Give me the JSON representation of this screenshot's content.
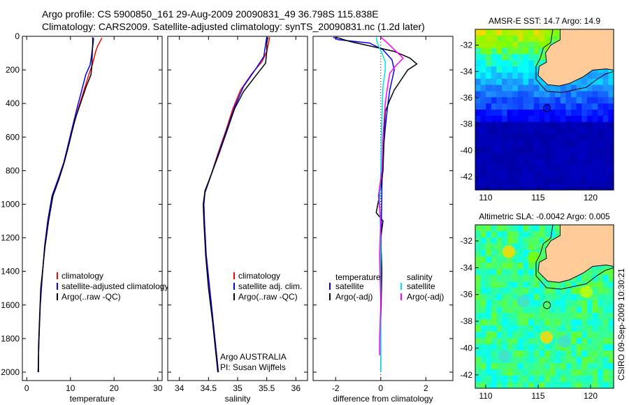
{
  "header": {
    "line1": "Argo profile: CS 5900850_161 29-Aug-2009 20090831_49 36.798S 115.838E",
    "line2": "Climatology: CARS2009. Satellite-adjusted climatology: synTS_20090831.nc (1.2d later)"
  },
  "stamp": "CSIRO 09-Sep-2009 10:30:21",
  "colors": {
    "climatology": "#ff0000",
    "satellite": "#0000ff",
    "argo": "#000000",
    "sal_satellite": "#00e5e5",
    "sal_argo": "#ff00ff",
    "land": "#ffcc99"
  },
  "depth_axis": {
    "ylim": [
      2050,
      0
    ],
    "ticks": [
      0,
      200,
      400,
      600,
      800,
      1000,
      1200,
      1400,
      1600,
      1800,
      2000
    ]
  },
  "chart_data": [
    {
      "type": "line",
      "id": "temperature",
      "xlabel": "temperature",
      "xlim": [
        -1,
        31
      ],
      "xticks": [
        0,
        10,
        20,
        30
      ],
      "ylim": [
        2050,
        0
      ],
      "legend": {
        "placement": "lower-right",
        "entries": [
          "climatology",
          "satellite-adjusted climatology",
          "Argo(..raw -QC)"
        ]
      },
      "series": [
        {
          "name": "climatology",
          "color": "#ff0000",
          "points": [
            [
              17.2,
              10
            ],
            [
              16.8,
              30
            ],
            [
              16.2,
              60
            ],
            [
              15.8,
              90
            ],
            [
              15.4,
              130
            ],
            [
              15.0,
              170
            ],
            [
              14.2,
              230
            ],
            [
              13.0,
              330
            ],
            [
              11.8,
              430
            ],
            [
              10.0,
              600
            ],
            [
              8.5,
              750
            ],
            [
              7.2,
              850
            ],
            [
              5.8,
              950
            ],
            [
              4.8,
              1100
            ],
            [
              4.1,
              1250
            ],
            [
              3.5,
              1450
            ],
            [
              3.1,
              1600
            ],
            [
              2.8,
              1800
            ],
            [
              2.6,
              2000
            ]
          ]
        },
        {
          "name": "satellite-adjusted climatology",
          "color": "#0000ff",
          "points": [
            [
              15.3,
              10
            ],
            [
              15.2,
              40
            ],
            [
              15.0,
              80
            ],
            [
              14.8,
              120
            ],
            [
              14.5,
              170
            ],
            [
              13.5,
              230
            ],
            [
              12.5,
              330
            ],
            [
              11.5,
              430
            ],
            [
              9.9,
              600
            ],
            [
              8.5,
              750
            ],
            [
              7.2,
              850
            ],
            [
              5.8,
              950
            ],
            [
              4.8,
              1100
            ],
            [
              4.1,
              1250
            ],
            [
              3.5,
              1450
            ],
            [
              3.1,
              1600
            ],
            [
              2.8,
              1800
            ],
            [
              2.6,
              2000
            ]
          ]
        },
        {
          "name": "Argo(..raw -QC)",
          "color": "#000000",
          "points": [
            [
              15.1,
              5
            ],
            [
              15.1,
              50
            ],
            [
              15.0,
              100
            ],
            [
              14.9,
              180
            ],
            [
              14.7,
              230
            ],
            [
              13.6,
              300
            ],
            [
              12.3,
              400
            ],
            [
              11.0,
              500
            ],
            [
              9.6,
              650
            ],
            [
              8.6,
              750
            ],
            [
              7.4,
              850
            ],
            [
              6.0,
              950
            ],
            [
              5.0,
              1100
            ],
            [
              4.2,
              1250
            ],
            [
              3.6,
              1400
            ],
            [
              3.2,
              1500
            ],
            [
              2.9,
              1700
            ],
            [
              2.7,
              1850
            ],
            [
              2.7,
              2000
            ]
          ]
        }
      ]
    },
    {
      "type": "line",
      "id": "salinity",
      "xlabel": "salinity",
      "xlim": [
        33.8,
        36.2
      ],
      "xticks": [
        34,
        34.5,
        35,
        35.5,
        36
      ],
      "ylim": [
        2050,
        0
      ],
      "legend": {
        "placement": "lower-right",
        "entries": [
          "climatology",
          "satellite adj. clim.",
          "Argo(..raw -QC)"
        ]
      },
      "annotation": [
        "Argo AUSTRALIA",
        "PI: Susan Wijffels"
      ],
      "series": [
        {
          "name": "climatology",
          "color": "#ff0000",
          "points": [
            [
              35.55,
              5
            ],
            [
              35.53,
              40
            ],
            [
              35.5,
              90
            ],
            [
              35.42,
              150
            ],
            [
              35.25,
              220
            ],
            [
              35.05,
              320
            ],
            [
              34.92,
              430
            ],
            [
              34.8,
              560
            ],
            [
              34.66,
              700
            ],
            [
              34.54,
              830
            ],
            [
              34.44,
              930
            ],
            [
              34.42,
              1000
            ],
            [
              34.43,
              1100
            ],
            [
              34.46,
              1300
            ],
            [
              34.52,
              1500
            ],
            [
              34.58,
              1700
            ],
            [
              34.64,
              1900
            ],
            [
              34.67,
              2000
            ]
          ]
        },
        {
          "name": "satellite adj. clim.",
          "color": "#0000ff",
          "points": [
            [
              35.5,
              5
            ],
            [
              35.48,
              50
            ],
            [
              35.45,
              120
            ],
            [
              35.3,
              200
            ],
            [
              35.1,
              300
            ],
            [
              34.95,
              420
            ],
            [
              34.82,
              550
            ],
            [
              34.67,
              700
            ],
            [
              34.54,
              830
            ],
            [
              34.44,
              930
            ],
            [
              34.42,
              1000
            ],
            [
              34.43,
              1100
            ],
            [
              34.46,
              1300
            ],
            [
              34.52,
              1500
            ],
            [
              34.58,
              1700
            ],
            [
              34.64,
              1900
            ],
            [
              34.67,
              2000
            ]
          ]
        },
        {
          "name": "Argo(..raw -QC)",
          "color": "#000000",
          "points": [
            [
              35.52,
              5
            ],
            [
              35.5,
              40
            ],
            [
              35.5,
              90
            ],
            [
              35.48,
              160
            ],
            [
              35.3,
              240
            ],
            [
              35.1,
              330
            ],
            [
              34.95,
              430
            ],
            [
              34.82,
              560
            ],
            [
              34.68,
              700
            ],
            [
              34.55,
              820
            ],
            [
              34.44,
              920
            ],
            [
              34.41,
              1000
            ],
            [
              34.42,
              1100
            ],
            [
              34.45,
              1300
            ],
            [
              34.5,
              1500
            ],
            [
              34.57,
              1700
            ],
            [
              34.63,
              1900
            ],
            [
              34.66,
              2000
            ]
          ]
        }
      ]
    },
    {
      "type": "line",
      "id": "difference",
      "xlabel": "difference from climatology",
      "xlim": [
        -3,
        3.2
      ],
      "xticks": [
        -2,
        0,
        2
      ],
      "ylim": [
        2050,
        0
      ],
      "zero_line": "dotted",
      "legend": {
        "placement": "lower-right",
        "columns": [
          {
            "title": "temperature",
            "entries": [
              "satellite",
              "Argo(-adj)"
            ]
          },
          {
            "title": "salinity",
            "entries": [
              "satellite",
              "Argo(-adj)"
            ]
          }
        ]
      },
      "series": [
        {
          "name": "temperature satellite",
          "color": "#0000ff",
          "points": [
            [
              -2.1,
              5
            ],
            [
              -1.9,
              20
            ],
            [
              -0.5,
              40
            ],
            [
              0.1,
              80
            ],
            [
              0.5,
              140
            ],
            [
              0.6,
              200
            ],
            [
              0.5,
              260
            ],
            [
              0.4,
              320
            ],
            [
              0.3,
              420
            ],
            [
              0.2,
              550
            ],
            [
              0.1,
              700
            ],
            [
              0.05,
              900
            ],
            [
              0.02,
              1200
            ],
            [
              0.0,
              1500
            ],
            [
              0.0,
              2000
            ]
          ]
        },
        {
          "name": "temperature Argo(-adj)",
          "color": "#000000",
          "points": [
            [
              -2.0,
              5
            ],
            [
              -1.4,
              30
            ],
            [
              -0.4,
              60
            ],
            [
              0.6,
              90
            ],
            [
              1.3,
              130
            ],
            [
              1.6,
              165
            ],
            [
              1.2,
              200
            ],
            [
              0.9,
              260
            ],
            [
              0.6,
              320
            ],
            [
              0.4,
              380
            ],
            [
              0.2,
              450
            ],
            [
              0.15,
              600
            ],
            [
              0.1,
              800
            ],
            [
              0.0,
              900
            ],
            [
              -0.1,
              980
            ],
            [
              -0.2,
              1050
            ],
            [
              0.1,
              1100
            ],
            [
              0.0,
              1200
            ],
            [
              0.05,
              1400
            ],
            [
              0.0,
              1700
            ],
            [
              0.0,
              2000
            ]
          ]
        },
        {
          "name": "salinity satellite",
          "color": "#00e5e5",
          "points": [
            [
              -0.2,
              5
            ],
            [
              -0.15,
              40
            ],
            [
              0.05,
              100
            ],
            [
              0.2,
              150
            ],
            [
              0.2,
              200
            ],
            [
              0.1,
              300
            ],
            [
              0.05,
              500
            ],
            [
              0.0,
              800
            ],
            [
              -0.05,
              1000
            ],
            [
              0.0,
              1200
            ],
            [
              0.0,
              1500
            ],
            [
              0.0,
              2000
            ]
          ]
        },
        {
          "name": "salinity Argo(-adj)",
          "color": "#ff00ff",
          "points": [
            [
              0.0,
              5
            ],
            [
              0.3,
              40
            ],
            [
              0.6,
              80
            ],
            [
              1.0,
              130
            ],
            [
              0.7,
              170
            ],
            [
              0.4,
              220
            ],
            [
              0.3,
              300
            ],
            [
              0.2,
              400
            ],
            [
              0.1,
              600
            ],
            [
              0.05,
              800
            ],
            [
              -0.1,
              950
            ],
            [
              0.0,
              1100
            ],
            [
              -0.05,
              1300
            ],
            [
              0.0,
              1600
            ],
            [
              -0.05,
              1800
            ],
            [
              -0.05,
              1900
            ]
          ]
        }
      ]
    },
    {
      "type": "heatmap",
      "id": "sst-map",
      "title": "AMSR-E SST: 14.7 Argo: 14.9",
      "xlim": [
        109,
        122.2
      ],
      "ylim": [
        -43,
        -30.8
      ],
      "xticks": [
        110,
        115,
        120
      ],
      "yticks": [
        -32,
        -34,
        -36,
        -38,
        -40,
        -42
      ],
      "float_position": {
        "lon": 115.838,
        "lat": -36.798
      }
    },
    {
      "type": "heatmap",
      "id": "sla-map",
      "title": "Altimetric SLA: -0.0042 Argo: 0.005",
      "xlim": [
        109,
        122.2
      ],
      "ylim": [
        -43,
        -30.8
      ],
      "xticks": [
        110,
        115,
        120
      ],
      "yticks": [
        -32,
        -34,
        -36,
        -38,
        -40,
        -42
      ],
      "float_position": {
        "lon": 115.838,
        "lat": -36.798
      }
    }
  ]
}
